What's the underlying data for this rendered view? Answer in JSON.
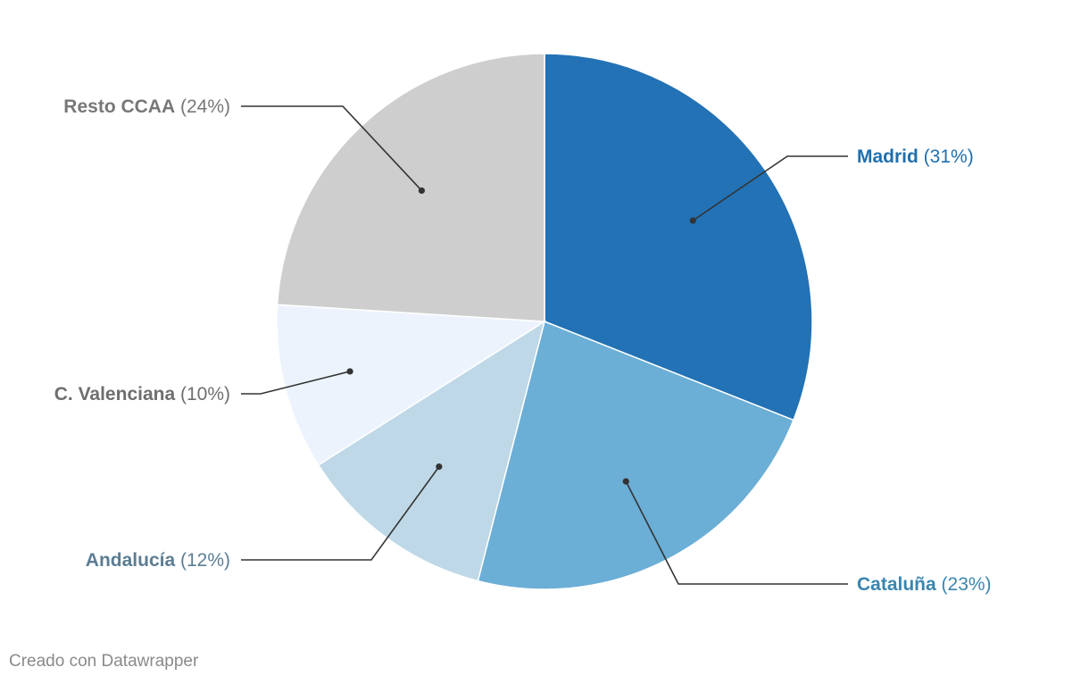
{
  "chart_data": {
    "type": "pie",
    "slices": [
      {
        "label": "Madrid",
        "value": 31,
        "pct_text": "(31%)",
        "color": "#2272b5",
        "label_color": "#1f6fae"
      },
      {
        "label": "Cataluña",
        "value": 23,
        "pct_text": "(23%)",
        "color": "#6baed6",
        "label_color": "#3a86ae"
      },
      {
        "label": "Andalucía",
        "value": 12,
        "pct_text": "(12%)",
        "color": "#bfd8e7",
        "label_color": "#5c7d93"
      },
      {
        "label": "C. Valenciana",
        "value": 10,
        "pct_text": "(10%)",
        "color": "#edf3fd",
        "label_color": "#6e6e6e"
      },
      {
        "label": "Resto CCAA",
        "value": 24,
        "pct_text": "(24%)",
        "color": "#cecece",
        "label_color": "#777777"
      }
    ]
  },
  "footer": {
    "credit": "Creado con Datawrapper"
  }
}
